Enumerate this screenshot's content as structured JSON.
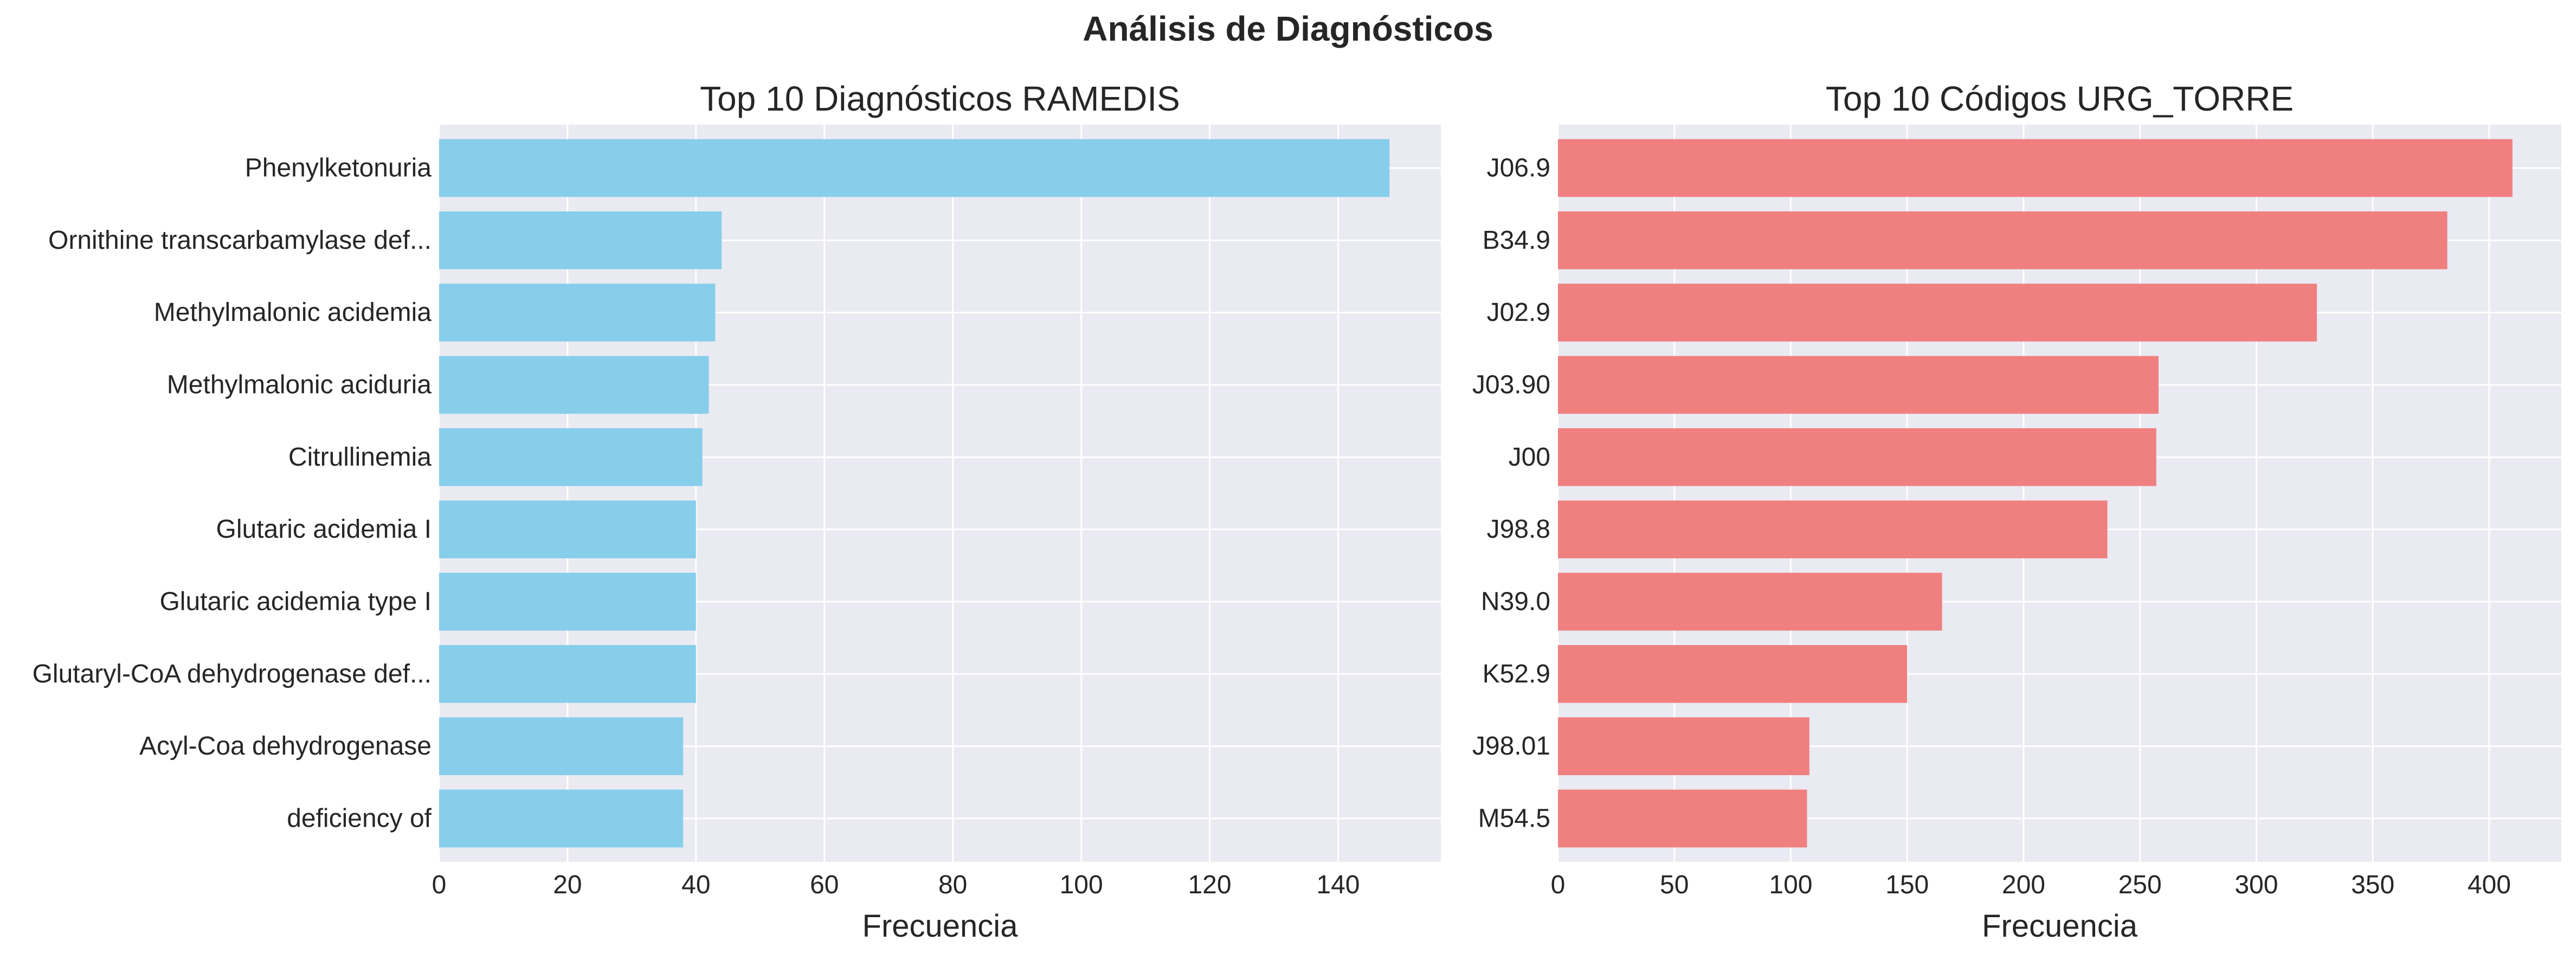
{
  "suptitle": "Análisis de Diagnósticos",
  "chart_data": [
    {
      "type": "bar",
      "orientation": "horizontal",
      "title": "Top 10 Diagnósticos RAMEDIS",
      "xlabel": "Frecuencia",
      "ylabel": "",
      "categories": [
        "Phenylketonuria",
        "Ornithine transcarbamylase def...",
        "Methylmalonic acidemia",
        "Methylmalonic aciduria",
        "Citrullinemia",
        "Glutaric acidemia I",
        "Glutaric acidemia type I",
        "Glutaryl-CoA dehydrogenase def...",
        "Acyl-Coa dehydrogenase",
        "deficiency of"
      ],
      "values": [
        148,
        44,
        43,
        42,
        41,
        40,
        40,
        40,
        38,
        38
      ],
      "xlim": [
        0,
        156
      ],
      "xticks": [
        0,
        20,
        40,
        60,
        80,
        100,
        120,
        140
      ],
      "color": "#87ceeb",
      "grid": true
    },
    {
      "type": "bar",
      "orientation": "horizontal",
      "title": "Top 10 Códigos URG_TORRE",
      "xlabel": "Frecuencia",
      "ylabel": "",
      "categories": [
        "J06.9",
        "B34.9",
        "J02.9",
        "J03.90",
        "J00",
        "J98.8",
        "N39.0",
        "K52.9",
        "J98.01",
        "M54.5"
      ],
      "values": [
        410,
        382,
        326,
        258,
        257,
        236,
        165,
        150,
        108,
        107
      ],
      "xlim": [
        0,
        431
      ],
      "xticks": [
        0,
        50,
        100,
        150,
        200,
        250,
        300,
        350,
        400
      ],
      "color": "#f08080",
      "grid": true
    }
  ]
}
